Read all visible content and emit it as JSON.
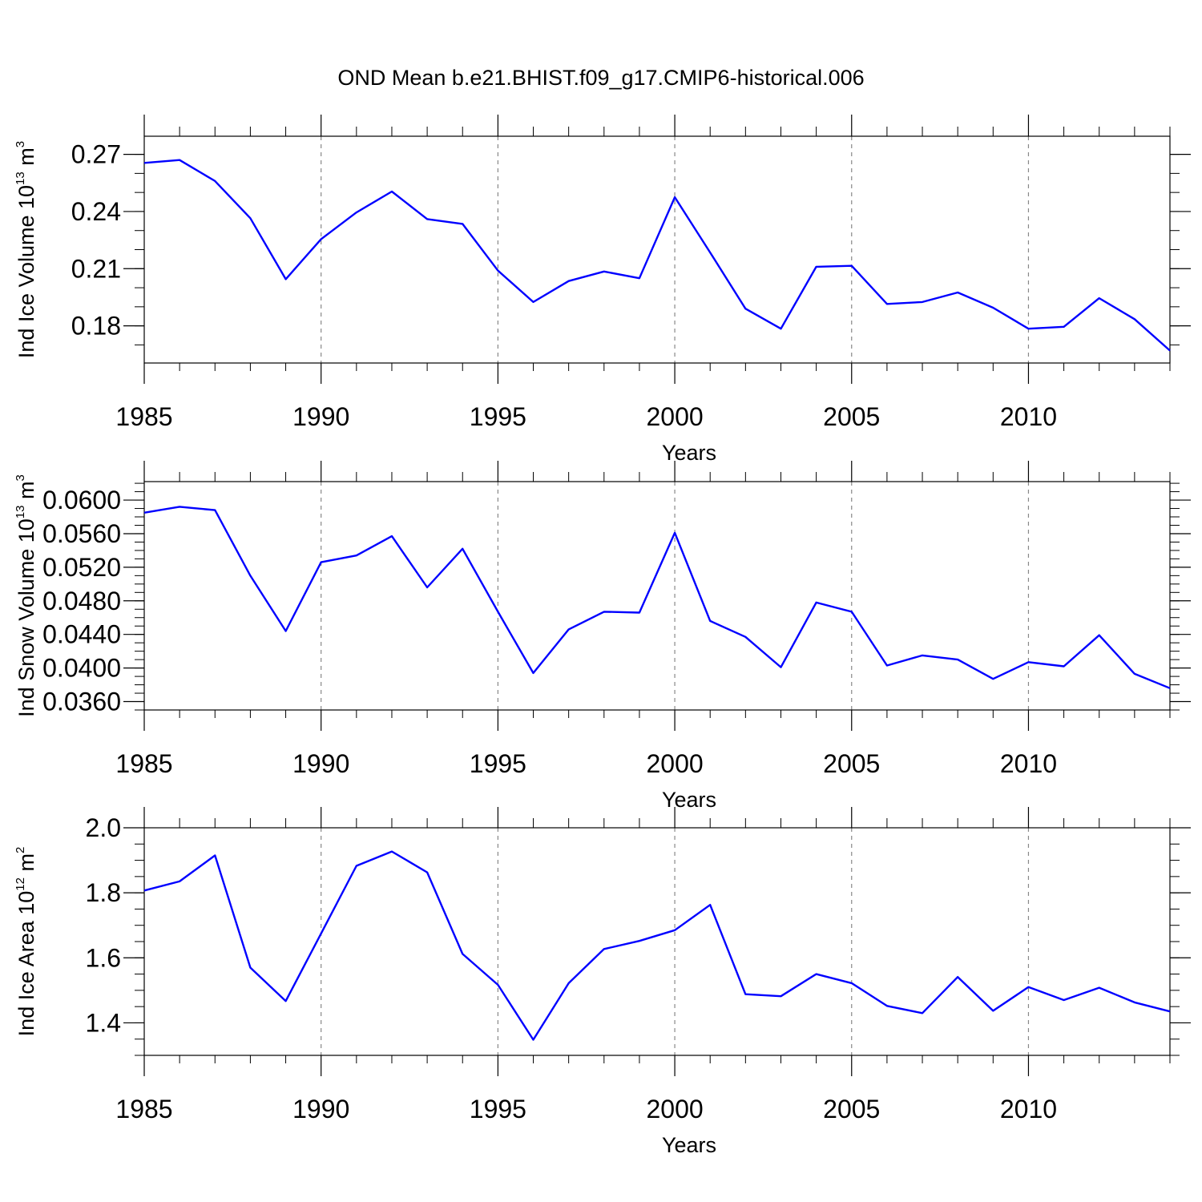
{
  "colors": {
    "series": "#0000ff",
    "axes": "#000000",
    "grid": "#888888"
  },
  "chart_data": [
    {
      "type": "line",
      "title": "OND Mean b.e21.BHIST.f09_g17.CMIP6-historical.006",
      "ylabel": {
        "prefix": "Ind Ice Volume 10",
        "exp": "13",
        "unit": " m",
        "unit_exp": "3"
      },
      "xlabel": "Years",
      "xlim": [
        1985,
        2014
      ],
      "ylim": [
        0.1605,
        0.2795
      ],
      "yticks": [
        0.18,
        0.21,
        0.24,
        0.27
      ],
      "ytick_labels": [
        "0.18",
        "0.21",
        "0.24",
        "0.27"
      ],
      "yminor_step": 0.01,
      "xticks": [
        1985,
        1990,
        1995,
        2000,
        2005,
        2010
      ],
      "xtick_labels": [
        "1985",
        "1990",
        "1995",
        "2000",
        "2005",
        "2010"
      ],
      "gridlines_x": [
        1990,
        1995,
        2000,
        2005,
        2010
      ],
      "x": [
        1985,
        1986,
        1987,
        1988,
        1989,
        1990,
        1991,
        1992,
        1993,
        1994,
        1995,
        1996,
        1997,
        1998,
        1999,
        2000,
        2001,
        2002,
        2003,
        2004,
        2005,
        2006,
        2007,
        2008,
        2009,
        2010,
        2011,
        2012,
        2013,
        2014
      ],
      "series": [
        {
          "name": "Ind Ice Volume",
          "values": [
            0.2655,
            0.267,
            0.256,
            0.2365,
            0.2045,
            0.2255,
            0.2395,
            0.2505,
            0.236,
            0.2335,
            0.209,
            0.1925,
            0.2035,
            0.2085,
            0.205,
            0.2475,
            0.2185,
            0.189,
            0.1785,
            0.211,
            0.2115,
            0.1915,
            0.1925,
            0.1975,
            0.1895,
            0.1785,
            0.1795,
            0.1945,
            0.1835,
            0.167
          ]
        }
      ]
    },
    {
      "type": "line",
      "title": "",
      "ylabel": {
        "prefix": "Ind Snow Volume 10",
        "exp": "13",
        "unit": " m",
        "unit_exp": "3"
      },
      "xlabel": "Years",
      "xlim": [
        1985,
        2014
      ],
      "ylim": [
        0.035,
        0.0622
      ],
      "yticks": [
        0.036,
        0.04,
        0.044,
        0.048,
        0.052,
        0.056,
        0.06
      ],
      "ytick_labels": [
        "0.0360",
        "0.0400",
        "0.0440",
        "0.0480",
        "0.0520",
        "0.0560",
        "0.0600"
      ],
      "yminor_step": 0.001,
      "xticks": [
        1985,
        1990,
        1995,
        2000,
        2005,
        2010
      ],
      "xtick_labels": [
        "1985",
        "1990",
        "1995",
        "2000",
        "2005",
        "2010"
      ],
      "gridlines_x": [
        1990,
        1995,
        2000,
        2005,
        2010
      ],
      "x": [
        1985,
        1986,
        1987,
        1988,
        1989,
        1990,
        1991,
        1992,
        1993,
        1994,
        1995,
        1996,
        1997,
        1998,
        1999,
        2000,
        2001,
        2002,
        2003,
        2004,
        2005,
        2006,
        2007,
        2008,
        2009,
        2010,
        2011,
        2012,
        2013,
        2014
      ],
      "series": [
        {
          "name": "Ind Snow Volume",
          "values": [
            0.0585,
            0.0592,
            0.0588,
            0.051,
            0.0444,
            0.0526,
            0.0534,
            0.0557,
            0.0496,
            0.0542,
            0.0467,
            0.0394,
            0.0446,
            0.0467,
            0.0466,
            0.0561,
            0.0456,
            0.0437,
            0.0401,
            0.0478,
            0.0467,
            0.0403,
            0.0415,
            0.041,
            0.0387,
            0.0407,
            0.0402,
            0.0439,
            0.0393,
            0.0376
          ]
        }
      ]
    },
    {
      "type": "line",
      "title": "",
      "ylabel": {
        "prefix": "Ind Ice Area 10",
        "exp": "12",
        "unit": " m",
        "unit_exp": "2"
      },
      "xlabel": "Years",
      "xlim": [
        1985,
        2014
      ],
      "ylim": [
        1.3,
        2.0
      ],
      "yticks": [
        1.4,
        1.6,
        1.8,
        2.0
      ],
      "ytick_labels": [
        "1.4",
        "1.6",
        "1.8",
        "2.0"
      ],
      "yminor_step": 0.05,
      "xticks": [
        1985,
        1990,
        1995,
        2000,
        2005,
        2010
      ],
      "xtick_labels": [
        "1985",
        "1990",
        "1995",
        "2000",
        "2005",
        "2010"
      ],
      "gridlines_x": [
        1990,
        1995,
        2000,
        2005,
        2010
      ],
      "x": [
        1985,
        1986,
        1987,
        1988,
        1989,
        1990,
        1991,
        1992,
        1993,
        1994,
        1995,
        1996,
        1997,
        1998,
        1999,
        2000,
        2001,
        2002,
        2003,
        2004,
        2005,
        2006,
        2007,
        2008,
        2009,
        2010,
        2011,
        2012,
        2013,
        2014
      ],
      "series": [
        {
          "name": "Ind Ice Area",
          "values": [
            1.807,
            1.835,
            1.915,
            1.57,
            1.467,
            1.675,
            1.883,
            1.927,
            1.863,
            1.612,
            1.517,
            1.348,
            1.522,
            1.627,
            1.652,
            1.685,
            1.763,
            1.488,
            1.482,
            1.55,
            1.522,
            1.452,
            1.43,
            1.541,
            1.437,
            1.51,
            1.47,
            1.508,
            1.463,
            1.435
          ]
        }
      ]
    }
  ]
}
